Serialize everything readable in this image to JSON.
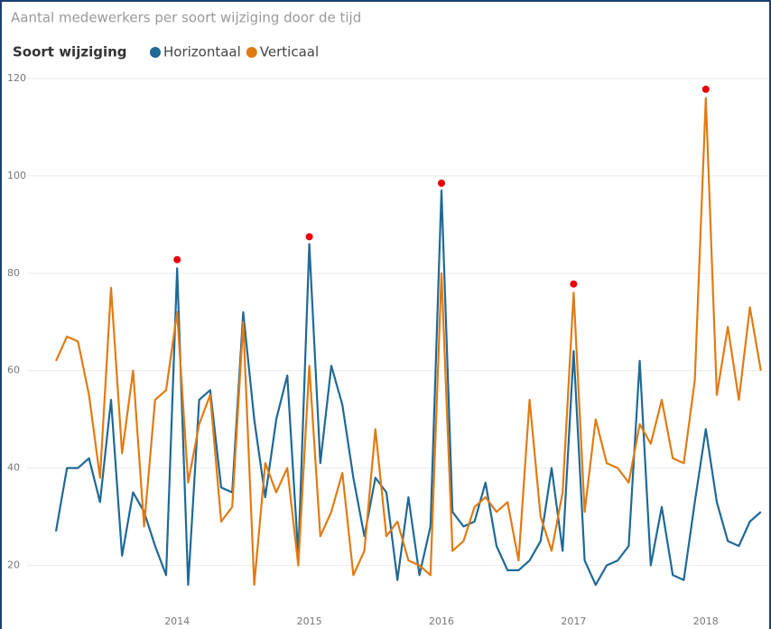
{
  "chart_data": {
    "type": "line",
    "title": "Aantal medewerkers per soort wijziging door de tijd",
    "legend_title": "Soort wijziging",
    "categories": [
      null,
      null,
      null,
      null,
      null,
      null,
      null,
      null,
      null,
      null,
      null,
      "2014",
      null,
      null,
      null,
      null,
      null,
      null,
      null,
      null,
      null,
      null,
      null,
      "2015",
      null,
      null,
      null,
      null,
      null,
      null,
      null,
      null,
      null,
      null,
      null,
      "2016",
      null,
      null,
      null,
      null,
      null,
      null,
      null,
      null,
      null,
      null,
      null,
      "2017",
      null,
      null,
      null,
      null,
      null,
      null,
      null,
      null,
      null,
      null,
      null,
      "2018",
      null,
      null,
      null,
      null,
      null
    ],
    "series": [
      {
        "name": "Horizontaal",
        "color": "#1f6996",
        "values": [
          27,
          40,
          40,
          42,
          33,
          54,
          22,
          35,
          31,
          24,
          18,
          81,
          16,
          54,
          56,
          36,
          35,
          72,
          50,
          34,
          50,
          59,
          22,
          86,
          41,
          61,
          53,
          38,
          26,
          38,
          35,
          17,
          34,
          18,
          28,
          97,
          31,
          28,
          29,
          37,
          24,
          19,
          19,
          21,
          25,
          40,
          23,
          64,
          21,
          16,
          20,
          21,
          24,
          62,
          20,
          32,
          18,
          17,
          33,
          48,
          33,
          25,
          24,
          29,
          31
        ]
      },
      {
        "name": "Verticaal",
        "color": "#e07b14",
        "values": [
          62,
          67,
          66,
          55,
          38,
          77,
          43,
          60,
          28,
          54,
          56,
          72,
          37,
          49,
          55,
          29,
          32,
          70,
          16,
          41,
          35,
          40,
          20,
          61,
          26,
          31,
          39,
          18,
          23,
          48,
          26,
          29,
          21,
          20,
          18,
          80,
          23,
          25,
          32,
          34,
          31,
          33,
          21,
          54,
          30,
          23,
          35,
          76,
          31,
          50,
          41,
          40,
          37,
          49,
          45,
          54,
          42,
          41,
          58,
          116,
          55,
          69,
          54,
          73,
          60
        ]
      }
    ],
    "markers": {
      "color": "#e8000b",
      "values": [
        null,
        null,
        null,
        null,
        null,
        null,
        null,
        null,
        null,
        null,
        null,
        82.8,
        null,
        null,
        null,
        null,
        null,
        null,
        null,
        null,
        null,
        null,
        null,
        87.5,
        null,
        null,
        null,
        null,
        null,
        null,
        null,
        null,
        null,
        null,
        null,
        98.5,
        null,
        null,
        null,
        null,
        null,
        null,
        null,
        null,
        null,
        null,
        null,
        77.8,
        null,
        null,
        null,
        null,
        null,
        null,
        null,
        null,
        null,
        null,
        null,
        117.8,
        null,
        null,
        null,
        null,
        null
      ]
    },
    "ylim": [
      10,
      120
    ],
    "yticks": [
      20,
      40,
      60,
      80,
      100,
      120
    ],
    "grid": true
  }
}
